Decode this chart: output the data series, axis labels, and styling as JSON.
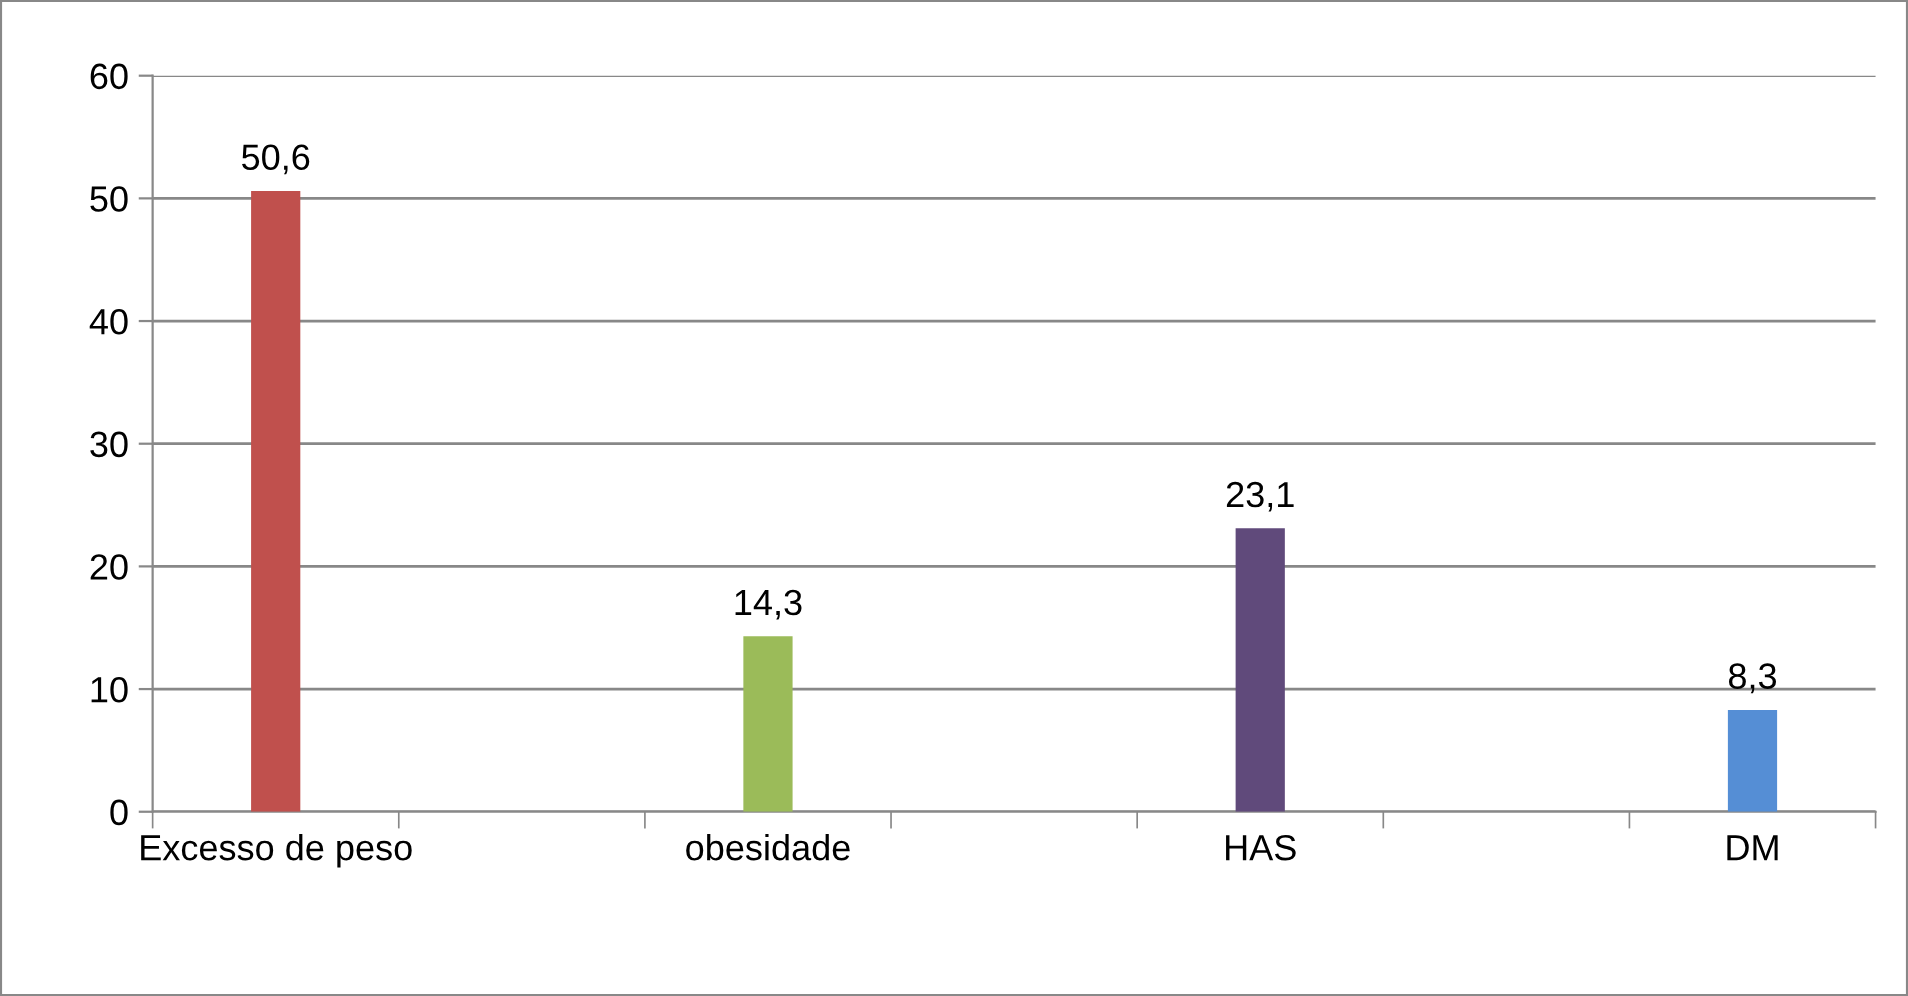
{
  "chart_data": {
    "type": "bar",
    "categories": [
      "Excesso de peso",
      null,
      "obesidade",
      null,
      "HAS",
      null,
      "DM"
    ],
    "values": [
      50.6,
      null,
      14.3,
      null,
      23.1,
      null,
      8.3
    ],
    "colors": [
      "#c0504d",
      null,
      "#9bbb59",
      null,
      "#604a7b",
      null,
      "#558ed5"
    ],
    "value_labels": [
      "50,6",
      null,
      "14,3",
      null,
      "23,1",
      null,
      "8,3"
    ],
    "ylim": [
      0,
      60
    ],
    "yticks": [
      0,
      10,
      20,
      30,
      40,
      50,
      60
    ],
    "grid": "y",
    "legend": false
  }
}
